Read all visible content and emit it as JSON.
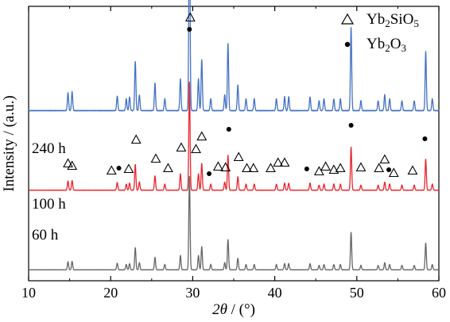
{
  "chart_data": {
    "type": "line",
    "xlabel_italic": "2θ",
    "xlabel_unit": " / (°)",
    "ylabel": "Intensity / (a.u.)",
    "xlim": [
      10,
      60
    ],
    "xticks": [
      10,
      20,
      30,
      40,
      50,
      60
    ],
    "y_ticks_shown": false,
    "legend": {
      "placement": "top-right",
      "entries": [
        {
          "marker": "triangle",
          "phase": "Yb2SiO5",
          "parts": [
            {
              "t": "Yb"
            },
            {
              "t": "2",
              "sub": true
            },
            {
              "t": "SiO"
            },
            {
              "t": "5",
              "sub": true
            }
          ]
        },
        {
          "marker": "dot",
          "phase": "Yb2O3",
          "parts": [
            {
              "t": "Yb"
            },
            {
              "t": "2",
              "sub": true
            },
            {
              "t": "O"
            },
            {
              "t": "3",
              "sub": true
            }
          ]
        }
      ]
    },
    "series": [
      {
        "name": "240 h",
        "color": "#4472C4",
        "baseline": 0.62,
        "scale": 1.0
      },
      {
        "name": "100 h",
        "color": "#E8262E",
        "baseline": 0.33,
        "scale": 0.52
      },
      {
        "name": "60 h",
        "color": "#666666",
        "baseline": 0.04,
        "scale": 0.45
      }
    ],
    "peaks": [
      {
        "x": 14.8,
        "h": 0.9
      },
      {
        "x": 15.3,
        "h": 0.95
      },
      {
        "x": 20.8,
        "h": 0.75
      },
      {
        "x": 21.9,
        "h": 0.6
      },
      {
        "x": 22.3,
        "h": 0.7
      },
      {
        "x": 23.0,
        "h": 2.5
      },
      {
        "x": 23.5,
        "h": 0.8
      },
      {
        "x": 25.4,
        "h": 1.4
      },
      {
        "x": 26.6,
        "h": 0.6
      },
      {
        "x": 28.5,
        "h": 1.6
      },
      {
        "x": 29.6,
        "h": 10.5
      },
      {
        "x": 30.7,
        "h": 1.6
      },
      {
        "x": 31.1,
        "h": 2.6
      },
      {
        "x": 32.2,
        "h": 0.6
      },
      {
        "x": 33.9,
        "h": 0.8
      },
      {
        "x": 34.3,
        "h": 3.4
      },
      {
        "x": 35.5,
        "h": 1.3
      },
      {
        "x": 36.5,
        "h": 0.6
      },
      {
        "x": 37.5,
        "h": 0.6
      },
      {
        "x": 40.2,
        "h": 0.6
      },
      {
        "x": 41.2,
        "h": 0.7
      },
      {
        "x": 41.7,
        "h": 0.7
      },
      {
        "x": 44.3,
        "h": 0.7
      },
      {
        "x": 45.4,
        "h": 0.5
      },
      {
        "x": 46.0,
        "h": 0.6
      },
      {
        "x": 47.2,
        "h": 0.6
      },
      {
        "x": 48.0,
        "h": 0.6
      },
      {
        "x": 49.3,
        "h": 4.2
      },
      {
        "x": 50.5,
        "h": 0.5
      },
      {
        "x": 52.6,
        "h": 0.5
      },
      {
        "x": 53.4,
        "h": 0.8
      },
      {
        "x": 54.0,
        "h": 0.6
      },
      {
        "x": 55.5,
        "h": 0.5
      },
      {
        "x": 57.0,
        "h": 0.5
      },
      {
        "x": 58.4,
        "h": 3.0
      },
      {
        "x": 59.2,
        "h": 0.6
      }
    ],
    "markers_Yb2SiO5_2theta": [
      14.8,
      15.3,
      20.1,
      22.2,
      23.1,
      25.5,
      27.0,
      28.6,
      29.7,
      30.4,
      31.1,
      33.1,
      34.0,
      35.6,
      36.6,
      37.4,
      39.5,
      40.4,
      41.2,
      45.4,
      46.2,
      47.2,
      48.0,
      50.5,
      52.7,
      53.4,
      54.5,
      56.8
    ],
    "markers_Yb2O3_2theta": [
      21.0,
      29.6,
      32.0,
      34.4,
      43.9,
      49.3,
      53.9,
      58.3
    ]
  }
}
